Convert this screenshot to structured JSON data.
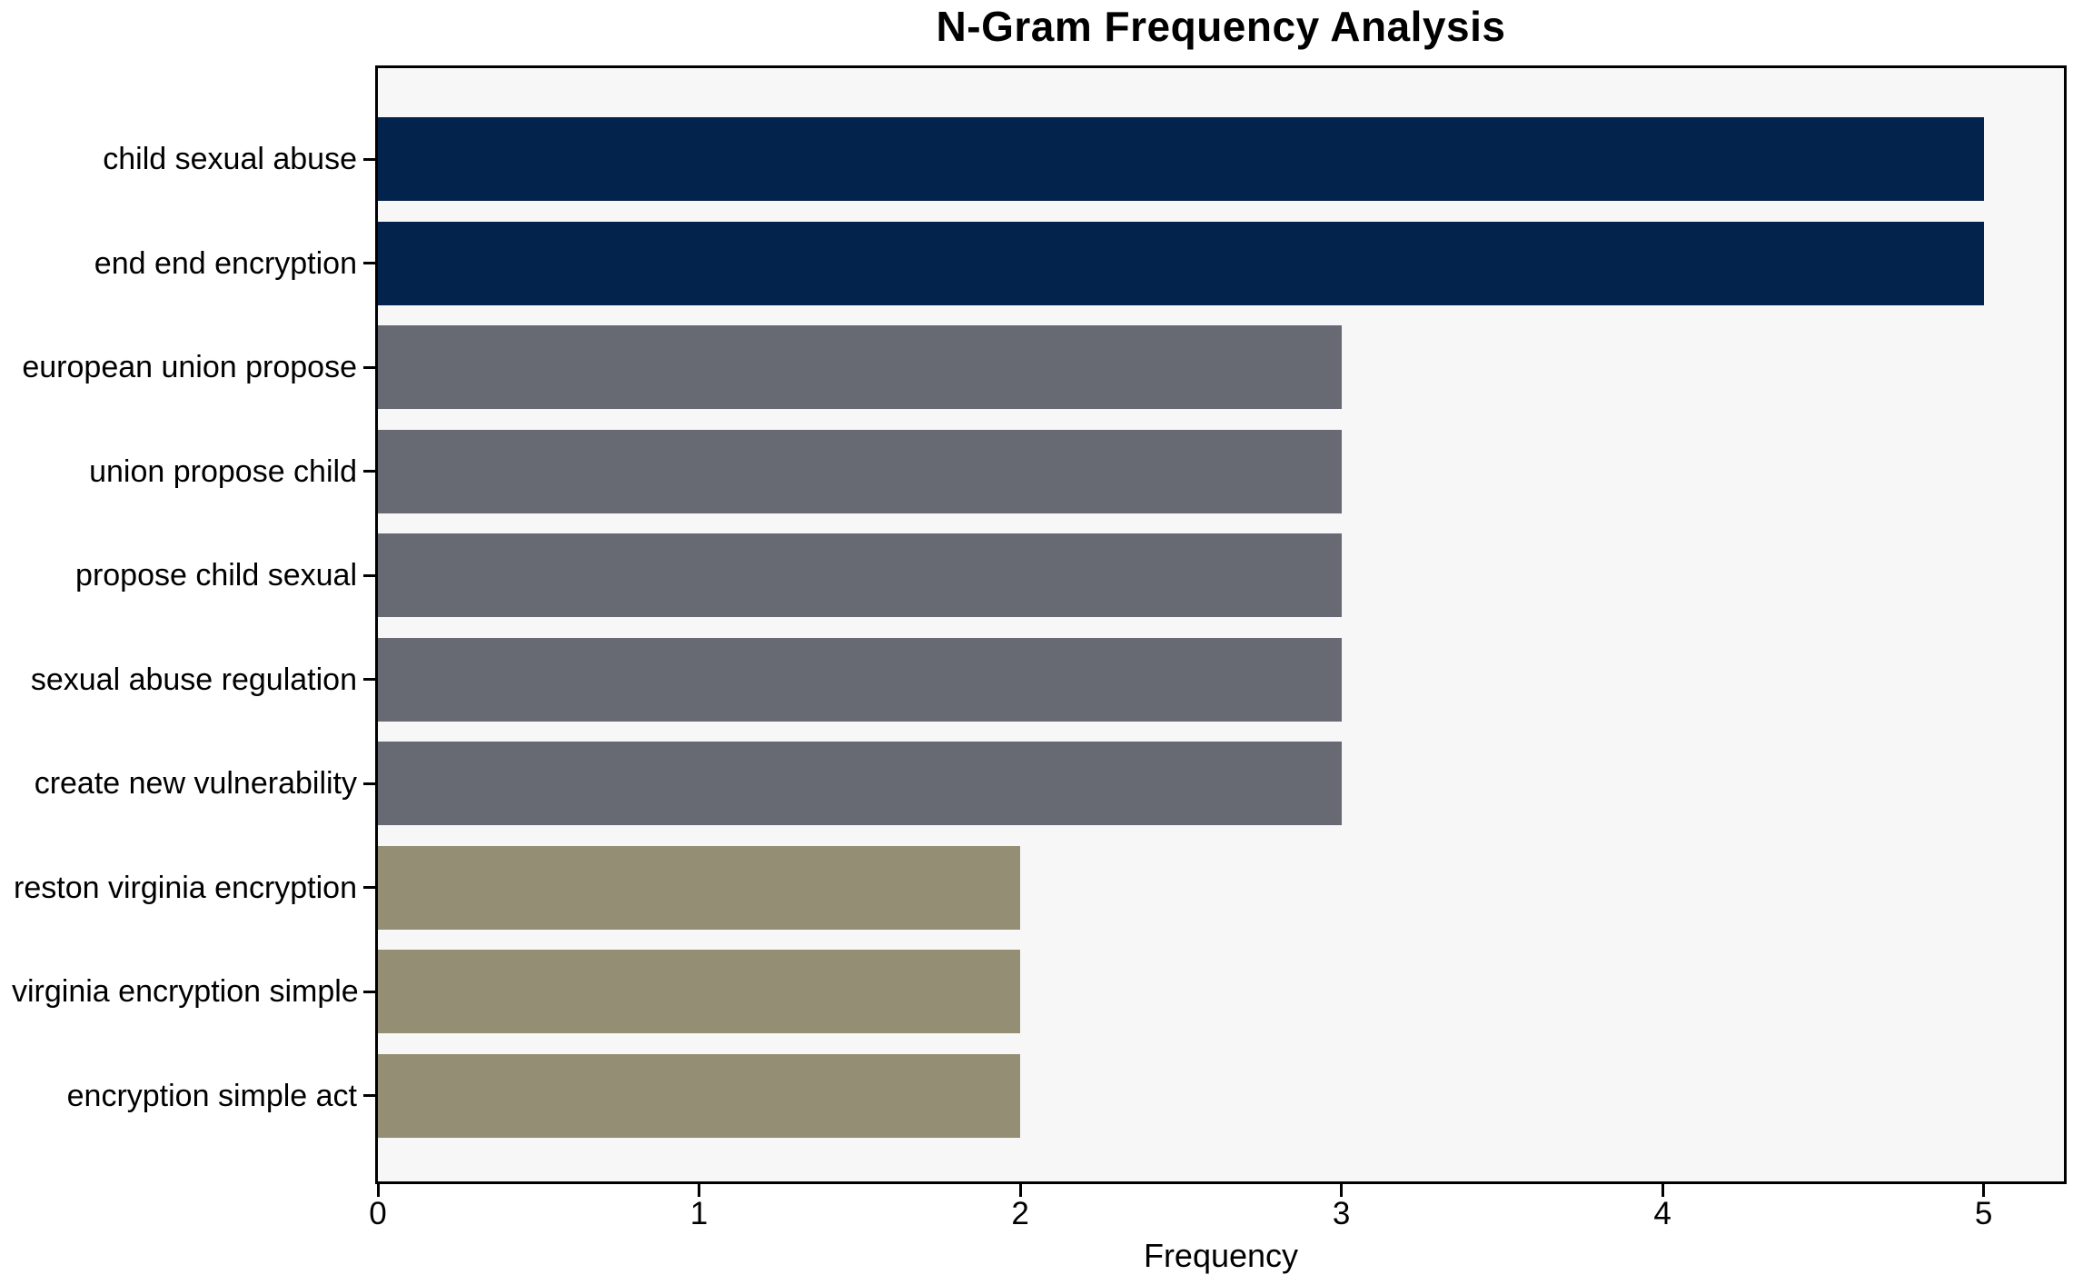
{
  "chart_data": {
    "type": "bar",
    "orientation": "horizontal",
    "title": "N-Gram Frequency Analysis",
    "xlabel": "Frequency",
    "ylabel": "",
    "categories": [
      "child sexual abuse",
      "end end encryption",
      "european union propose",
      "union propose child",
      "propose child sexual",
      "sexual abuse regulation",
      "create new vulnerability",
      "reston virginia encryption",
      "virginia encryption simple",
      "encryption simple act"
    ],
    "values": [
      5,
      5,
      3,
      3,
      3,
      3,
      3,
      2,
      2,
      2
    ],
    "bar_colors": [
      "#03224c",
      "#03224c",
      "#676a72",
      "#676a72",
      "#676a72",
      "#676a72",
      "#676a72",
      "#948e74",
      "#948e74",
      "#948e74"
    ],
    "xlim": [
      0,
      5.25
    ],
    "x_ticks": [
      0,
      1,
      2,
      3,
      4,
      5
    ],
    "grid": false,
    "legend_position": "none",
    "plot_bg": "#f7f7f7",
    "figure_bg": "#ffffff",
    "spine_color": "#000000",
    "text_color": "#000000"
  }
}
